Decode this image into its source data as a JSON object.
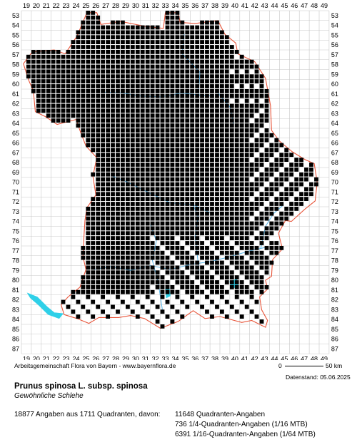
{
  "map": {
    "x_labels": [
      "19",
      "20",
      "21",
      "22",
      "23",
      "24",
      "25",
      "26",
      "27",
      "28",
      "29",
      "30",
      "31",
      "32",
      "33",
      "34",
      "35",
      "36",
      "37",
      "38",
      "39",
      "40",
      "41",
      "42",
      "43",
      "44",
      "45",
      "46",
      "47",
      "48",
      "49"
    ],
    "y_labels": [
      "53",
      "54",
      "55",
      "56",
      "57",
      "58",
      "59",
      "60",
      "61",
      "62",
      "63",
      "64",
      "65",
      "66",
      "67",
      "68",
      "69",
      "70",
      "71",
      "72",
      "73",
      "74",
      "75",
      "76",
      "77",
      "78",
      "79",
      "80",
      "81",
      "82",
      "83",
      "84",
      "85",
      "86",
      "87"
    ],
    "marker_color": "#000000",
    "border_color": "#e8553a",
    "river_color": "#5ab4e6",
    "lake_color": "#2fd0e8",
    "grid_color": "#c8c8c8"
  },
  "footer": {
    "credit": "Arbeitsgemeinschaft Flora von Bayern - www.bayernflora.de",
    "scale_start": "0",
    "scale_end": "50 km",
    "date": "Datenstand: 05.06.2025"
  },
  "species": {
    "name": "Prunus spinosa L. subsp. spinosa",
    "common": "Gewöhnliche Schlehe"
  },
  "stats": {
    "summary": "18877 Angaben aus 1711 Quadranten, davon:",
    "q_full": "11648 Quadranten-Angaben",
    "q_quarter": "736 1/4-Quadranten-Angaben (1/16 MTB)",
    "q_sixteenth": "6391 1/16-Quadranten-Angaben (1/64 MTB)"
  }
}
